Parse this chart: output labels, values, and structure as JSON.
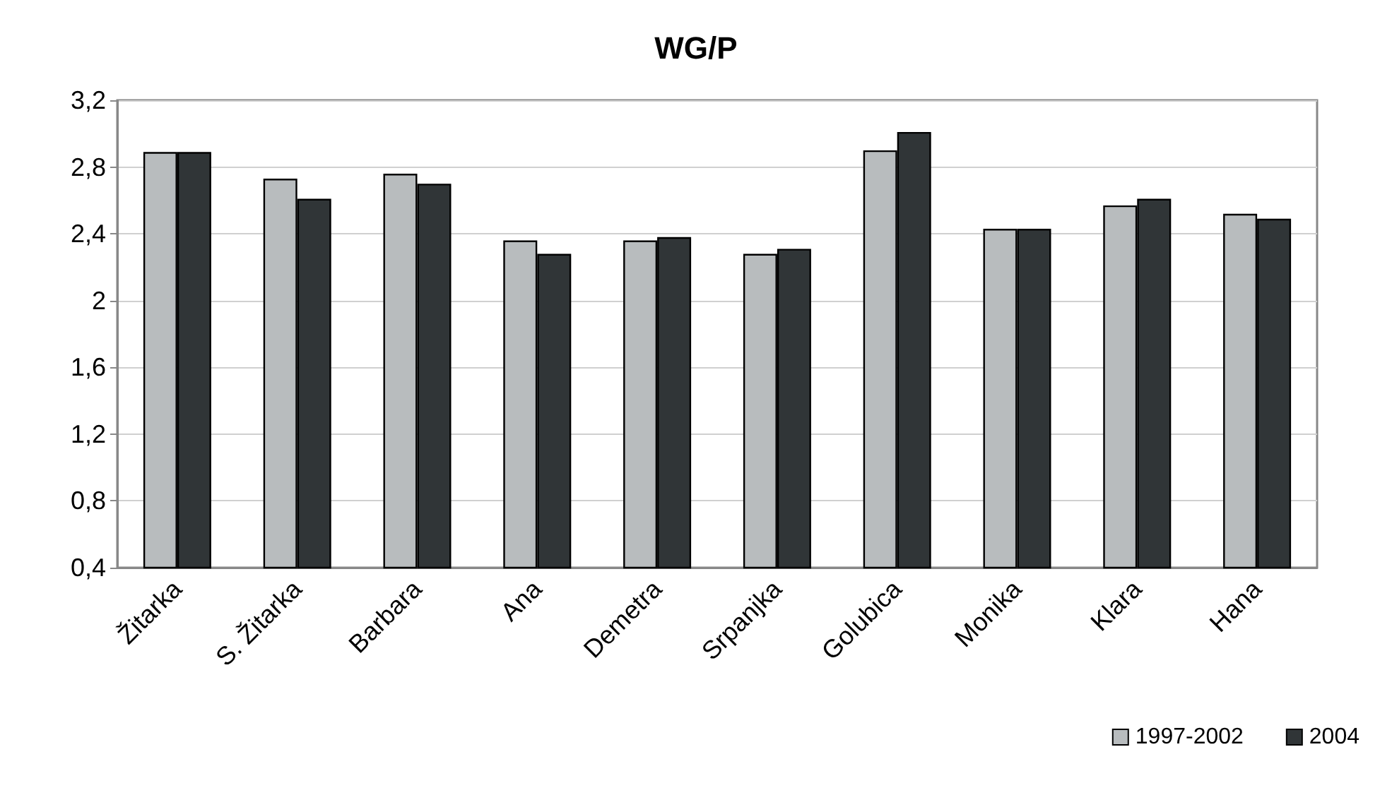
{
  "chart_data": {
    "type": "bar",
    "title": "WG/P",
    "categories": [
      "Žitarka",
      "S. Žitarka",
      "Barbara",
      "Ana",
      "Demetra",
      "Srpanjka",
      "Golubica",
      "Monika",
      "Klara",
      "Hana"
    ],
    "series": [
      {
        "name": "1997-2002",
        "color": "#b8bcbe",
        "values": [
          2.89,
          2.73,
          2.76,
          2.36,
          2.36,
          2.28,
          2.9,
          2.43,
          2.57,
          2.52
        ]
      },
      {
        "name": "2004",
        "color": "#303537",
        "values": [
          2.89,
          2.61,
          2.7,
          2.28,
          2.38,
          2.31,
          3.01,
          2.43,
          2.61,
          2.49
        ]
      }
    ],
    "ylim": [
      0.4,
      3.2
    ],
    "yticks": [
      {
        "value": 0.4,
        "label": "0,4"
      },
      {
        "value": 0.8,
        "label": "0,8"
      },
      {
        "value": 1.2,
        "label": "1,2"
      },
      {
        "value": 1.6,
        "label": "1,6"
      },
      {
        "value": 2,
        "label": "2"
      },
      {
        "value": 2.4,
        "label": "2,4"
      },
      {
        "value": 2.8,
        "label": "2,8"
      },
      {
        "value": 3.2,
        "label": "3,2"
      }
    ],
    "grid": "y",
    "legend": "bottom right"
  }
}
